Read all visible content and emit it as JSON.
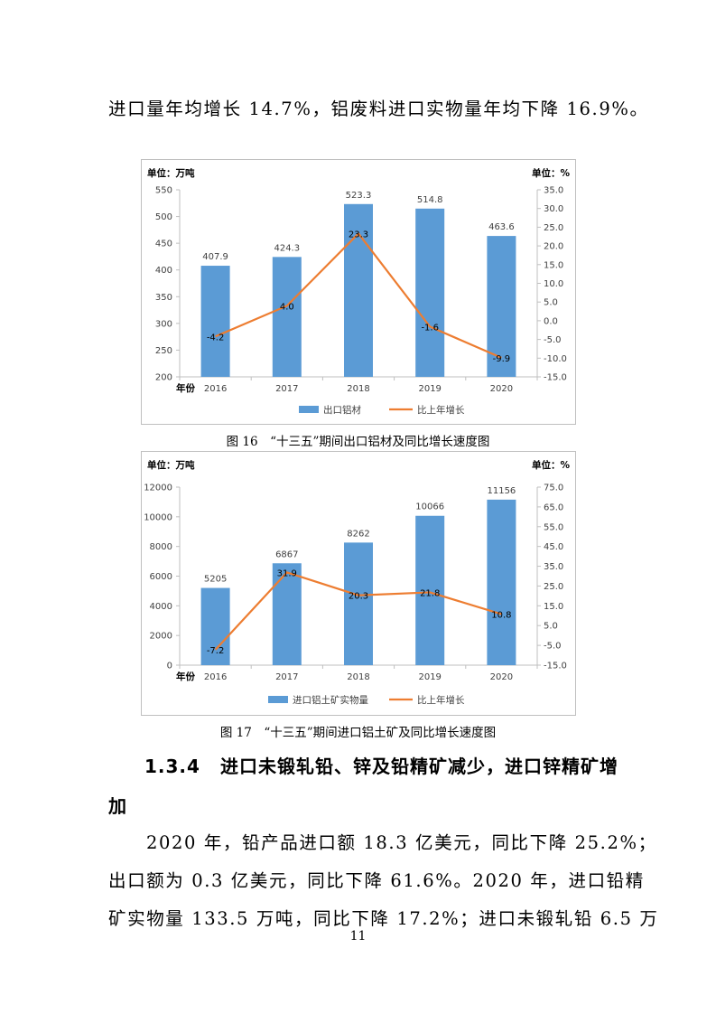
{
  "intro_line": "进口量年均增长 14.7%，铝废料进口实物量年均下降 16.9%。",
  "charts": [
    {
      "unit_left": "单位：万吨",
      "unit_right": "单位：%",
      "x_axis_label": "年份",
      "caption": "图 16　“十三五”期间出口铝材及同比增长速度图",
      "colors": {
        "bar": "#5b9bd5",
        "line": "#ed7d31"
      }
    },
    {
      "unit_left": "单位：万吨",
      "unit_right": "单位：%",
      "x_axis_label": "年份",
      "caption": "图 17　“十三五”期间进口铝土矿及同比增长速度图",
      "colors": {
        "bar": "#5b9bd5",
        "line": "#ed7d31"
      }
    }
  ],
  "chart_data": [
    {
      "type": "bar",
      "categories": [
        "2016",
        "2017",
        "2018",
        "2019",
        "2020"
      ],
      "series": [
        {
          "name": "出口铝材",
          "type": "bar",
          "axis": "left",
          "values": [
            407.9,
            424.3,
            523.3,
            514.8,
            463.6
          ]
        },
        {
          "name": "比上年增长",
          "type": "line",
          "axis": "right",
          "values": [
            -4.2,
            4.0,
            23.3,
            -1.6,
            -9.9
          ]
        }
      ],
      "bar_labels": [
        "407.9",
        "424.3",
        "523.3",
        "514.8",
        "463.6"
      ],
      "line_labels": [
        "-4.2",
        "4.0",
        "23.3",
        "-1.6",
        "-9.9"
      ],
      "y_left": {
        "min": 200,
        "max": 550,
        "ticks": [
          "200",
          "250",
          "300",
          "350",
          "400",
          "450",
          "500",
          "550"
        ]
      },
      "y_right": {
        "min": -15,
        "max": 35,
        "ticks": [
          "-15.0",
          "-10.0",
          "-5.0",
          "0.0",
          "5.0",
          "10.0",
          "15.0",
          "20.0",
          "25.0",
          "30.0",
          "35.0"
        ]
      },
      "legend_position": "bottom",
      "grid": false
    },
    {
      "type": "bar",
      "categories": [
        "2016",
        "2017",
        "2018",
        "2019",
        "2020"
      ],
      "series": [
        {
          "name": "进口铝土矿实物量",
          "type": "bar",
          "axis": "left",
          "values": [
            5205,
            6867,
            8262,
            10066,
            11156
          ]
        },
        {
          "name": "比上年增长",
          "type": "line",
          "axis": "right",
          "values": [
            -7.2,
            31.9,
            20.3,
            21.8,
            10.8
          ]
        }
      ],
      "bar_labels": [
        "5205",
        "6867",
        "8262",
        "10066",
        "11156"
      ],
      "line_labels": [
        "-7.2",
        "31.9",
        "20.3",
        "21.8",
        "10.8"
      ],
      "y_left": {
        "min": 0,
        "max": 12000,
        "ticks": [
          "0",
          "2000",
          "4000",
          "6000",
          "8000",
          "10000",
          "12000"
        ]
      },
      "y_right": {
        "min": -15,
        "max": 75,
        "ticks": [
          "-15.0",
          "-5.0",
          "5.0",
          "15.0",
          "25.0",
          "35.0",
          "45.0",
          "55.0",
          "65.0",
          "75.0"
        ]
      },
      "legend_position": "bottom",
      "grid": false
    }
  ],
  "section": {
    "number": "1.3.4",
    "title_line1": "进口未锻轧铅、锌及铅精矿减少，进口锌精矿增",
    "title_line2": "加"
  },
  "body_lines": [
    "2020 年，铅产品进口额 18.3 亿美元，同比下降 25.2%；",
    "出口额为 0.3 亿美元，同比下降 61.6%。2020 年，进口铅精",
    "矿实物量 133.5 万吨，同比下降 17.2%；进口未锻轧铅 6.5 万"
  ],
  "page_number": "11"
}
